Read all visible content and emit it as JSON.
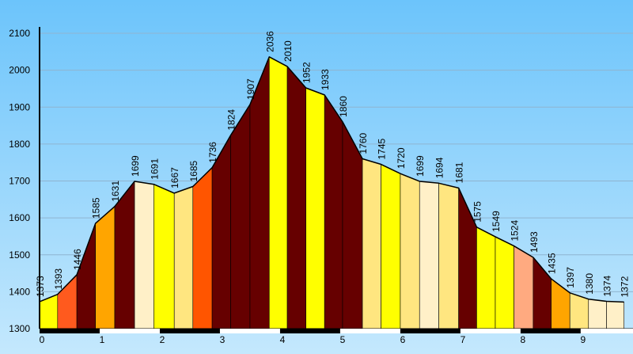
{
  "chart_data": {
    "type": "elevation-profile",
    "x": [
      0,
      0.3,
      0.62,
      0.93,
      1.25,
      1.58,
      1.9,
      2.24,
      2.55,
      2.87,
      3.18,
      3.5,
      3.82,
      4.12,
      4.43,
      4.74,
      5.04,
      5.37,
      5.68,
      6.0,
      6.32,
      6.64,
      6.97,
      7.27,
      7.58,
      7.89,
      8.21,
      8.51,
      8.82,
      9.13,
      9.43,
      9.72
    ],
    "values": [
      1373,
      1393,
      1446,
      1585,
      1631,
      1699,
      1691,
      1667,
      1685,
      1736,
      1824,
      1907,
      2036,
      2010,
      1952,
      1933,
      1860,
      1760,
      1745,
      1720,
      1699,
      1694,
      1681,
      1575,
      1549,
      1524,
      1493,
      1435,
      1397,
      1380,
      1374,
      1372
    ],
    "segment_colors": [
      "#ffff00",
      "#ff5a1e",
      "#660000",
      "#ffa500",
      "#660000",
      "#fff0c8",
      "#ffff00",
      "#ffe680",
      "#ff5500",
      "#660000",
      "#660000",
      "#660000",
      "#ffff00",
      "#660000",
      "#ffff00",
      "#660000",
      "#660000",
      "#ffe680",
      "#ffff00",
      "#ffe680",
      "#fff0c8",
      "#ffe680",
      "#660000",
      "#ffff00",
      "#ffff00",
      "#ffaa80",
      "#660000",
      "#ffa500",
      "#ffe680",
      "#fff0c8",
      "#fff0c8"
    ],
    "xlim": [
      0,
      9.87
    ],
    "xticks": [
      0,
      1,
      2,
      3,
      4,
      5,
      6,
      7,
      8,
      9
    ],
    "ylim": [
      1300,
      2100
    ],
    "yticks": [
      1300,
      1400,
      1500,
      1600,
      1700,
      1800,
      1900,
      2000,
      2100
    ],
    "grid": true
  }
}
